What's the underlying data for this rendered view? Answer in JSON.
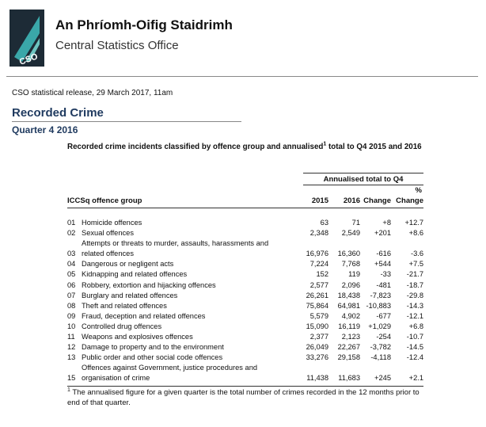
{
  "header": {
    "logo": "CSO",
    "irish_name": "An Phríomh-Oifig Staidrimh",
    "english_name": "Central Statistics Office"
  },
  "release": "CSO statistical release, 29 March 2017, 11am",
  "title": "Recorded Crime",
  "subtitle": "Quarter 4 2016",
  "table": {
    "caption": {
      "before": "Recorded crime incidents classified by offence group and annualised",
      "sup": "1",
      "after": " total to Q4 2015 and 2016"
    },
    "group_header": "Annualised total to Q4",
    "percent_sign": "%",
    "columns": [
      "ICCSq offence group",
      "2015",
      "2016",
      "Change",
      "Change"
    ],
    "rows": [
      [
        "01",
        "Homicide offences",
        "63",
        "71",
        "+8",
        "+12.7"
      ],
      [
        "02",
        "Sexual offences",
        "2,348",
        "2,549",
        "+201",
        "+8.6"
      ],
      [
        "03",
        "Attempts or threats to murder, assaults, harassments and related offences",
        "16,976",
        "16,360",
        "-616",
        "-3.6"
      ],
      [
        "04",
        "Dangerous or negligent acts",
        "7,224",
        "7,768",
        "+544",
        "+7.5"
      ],
      [
        "05",
        "Kidnapping and related offences",
        "152",
        "119",
        "-33",
        "-21.7"
      ],
      [
        "06",
        "Robbery, extortion and hijacking offences",
        "2,577",
        "2,096",
        "-481",
        "-18.7"
      ],
      [
        "07",
        "Burglary and related offences",
        "26,261",
        "18,438",
        "-7,823",
        "-29.8"
      ],
      [
        "08",
        "Theft and related offences",
        "75,864",
        "64,981",
        "-10,883",
        "-14.3"
      ],
      [
        "09",
        "Fraud, deception and related offences",
        "5,579",
        "4,902",
        "-677",
        "-12.1"
      ],
      [
        "10",
        "Controlled drug offences",
        "15,090",
        "16,119",
        "+1,029",
        "+6.8"
      ],
      [
        "11",
        "Weapons and explosives offences",
        "2,377",
        "2,123",
        "-254",
        "-10.7"
      ],
      [
        "12",
        "Damage to property and to the environment",
        "26,049",
        "22,267",
        "-3,782",
        "-14.5"
      ],
      [
        "13",
        "Public order and other social code offences",
        "33,276",
        "29,158",
        "-4,118",
        "-12.4"
      ],
      [
        "15",
        "Offences against Government, justice procedures and organisation of crime",
        "11,438",
        "11,683",
        "+245",
        "+2.1"
      ]
    ],
    "footnote": {
      "sup": "1",
      "text": " The annualised figure for a given quarter is the total number of crimes recorded in the 12 months prior to end of that quarter."
    }
  }
}
